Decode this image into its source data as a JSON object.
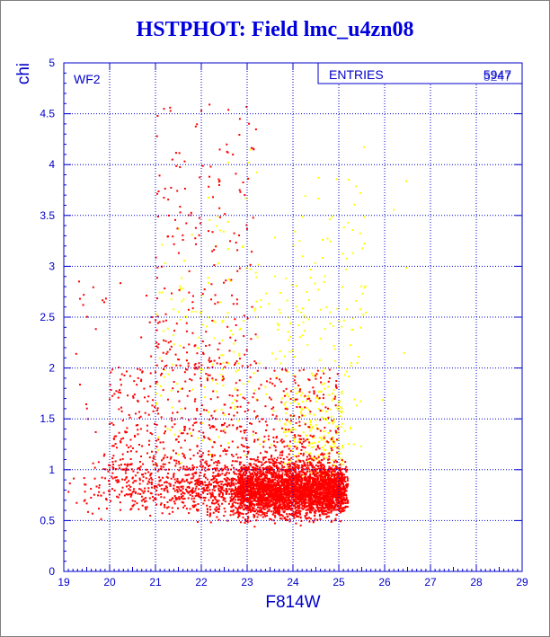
{
  "title": "HSTPHOT: Field lmc_u4zn08",
  "colors": {
    "background": "#000000",
    "canvas": "#ffffff",
    "axis": "#0000cc",
    "title": "#0000dd",
    "red_points": "#ff0000",
    "yellow_points": "#ffff00"
  },
  "chart_data": {
    "type": "scatter",
    "title": "HSTPHOT: Field lmc_u4zn08",
    "xlabel": "F814W",
    "ylabel": "chi",
    "xlim": [
      19,
      29
    ],
    "ylim": [
      0,
      5
    ],
    "x_ticks": [
      "19",
      "20",
      "21",
      "22",
      "23",
      "24",
      "25",
      "26",
      "27",
      "28",
      "29"
    ],
    "y_ticks": [
      "0",
      "0.5",
      "1",
      "1.5",
      "2",
      "2.5",
      "3",
      "3.5",
      "4",
      "4.5",
      "5"
    ],
    "grid": true,
    "annotation": "WF2",
    "stats_box": {
      "label": "ENTRIES",
      "value": "5947",
      "overprinted_value": "5247",
      "placement": "top-right"
    },
    "series": [
      {
        "color": "#ff0000",
        "clusters": [
          {
            "x_range": [
              19.0,
              25.2
            ],
            "y_center": 0.8,
            "y_spread": 0.15,
            "density": "high",
            "dense_core": {
              "x_range": [
                22.8,
                25.1
              ],
              "y_range": [
                0.55,
                1.05
              ]
            }
          },
          {
            "x_range": [
              20.0,
              25.0
            ],
            "y_range": [
              1.0,
              2.0
            ],
            "density": "medium"
          },
          {
            "x_range": [
              21.0,
              23.2
            ],
            "y_range": [
              2.0,
              4.6
            ],
            "density": "low"
          }
        ]
      },
      {
        "color": "#ffff00",
        "clusters": [
          {
            "x_range": [
              21.0,
              26.5
            ],
            "y_range": [
              1.0,
              4.5
            ],
            "density": "low"
          }
        ]
      }
    ]
  }
}
